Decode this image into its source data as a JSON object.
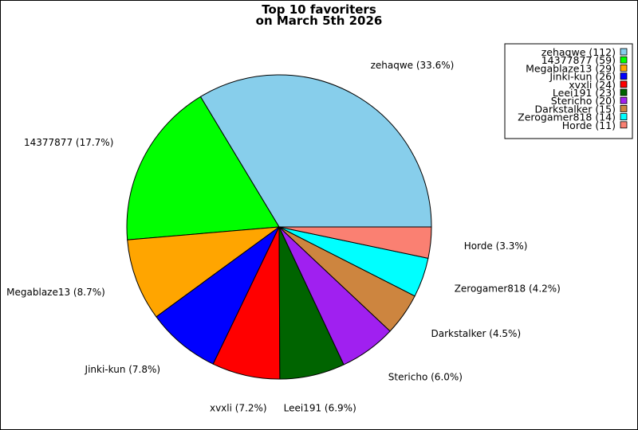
{
  "chart_data": {
    "type": "pie",
    "title_line1": "Top 10 favoriters",
    "title_line2": "on March 5th 2026",
    "legend_position": "top-right",
    "slices": [
      {
        "name": "zehaqwe",
        "value": 112,
        "pct_label": "zehaqwe (33.6%)",
        "legend_label": "zehaqwe (112)",
        "color": "#87CEEB"
      },
      {
        "name": "14377877",
        "value": 59,
        "pct_label": "14377877 (17.7%)",
        "legend_label": "14377877 (59)",
        "color": "#00FF00"
      },
      {
        "name": "Megablaze13",
        "value": 29,
        "pct_label": "Megablaze13 (8.7%)",
        "legend_label": "Megablaze13 (29)",
        "color": "#FFA500"
      },
      {
        "name": "Jinki-kun",
        "value": 26,
        "pct_label": "Jinki-kun (7.8%)",
        "legend_label": "Jinki-kun (26)",
        "color": "#0000FF"
      },
      {
        "name": "xvxli",
        "value": 24,
        "pct_label": "xvxli (7.2%)",
        "legend_label": "xvxli (24)",
        "color": "#FF0000"
      },
      {
        "name": "Leei191",
        "value": 23,
        "pct_label": "Leei191 (6.9%)",
        "legend_label": "Leei191 (23)",
        "color": "#006400"
      },
      {
        "name": "Stericho",
        "value": 20,
        "pct_label": "Stericho (6.0%)",
        "legend_label": "Stericho (20)",
        "color": "#A020F0"
      },
      {
        "name": "Darkstalker",
        "value": 15,
        "pct_label": "Darkstalker (4.5%)",
        "legend_label": "Darkstalker (15)",
        "color": "#CD853F"
      },
      {
        "name": "Zerogamer818",
        "value": 14,
        "pct_label": "Zerogamer818 (4.2%)",
        "legend_label": "Zerogamer818 (14)",
        "color": "#00FFFF"
      },
      {
        "name": "Horde",
        "value": 11,
        "pct_label": "Horde (3.3%)",
        "legend_label": "Horde (11)",
        "color": "#FA8072"
      }
    ]
  }
}
